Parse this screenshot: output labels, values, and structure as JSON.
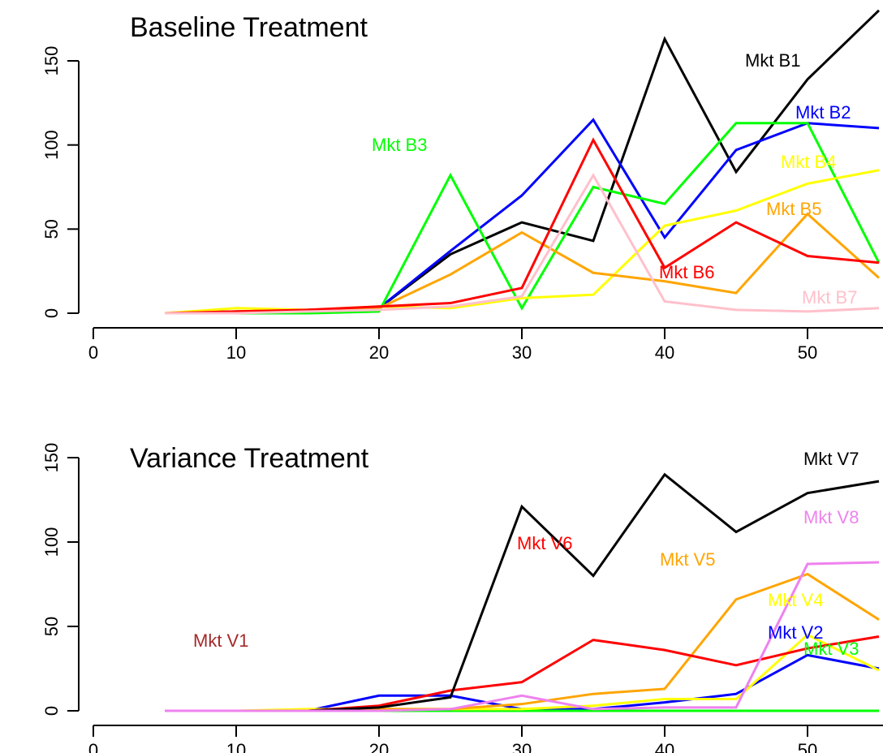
{
  "chart_data": [
    {
      "type": "line",
      "title": "Baseline Treatment",
      "xlabel": "",
      "ylabel": "",
      "xlim": [
        0,
        55
      ],
      "ylim": [
        0,
        170
      ],
      "x_ticks": [
        0,
        10,
        20,
        30,
        40,
        50
      ],
      "y_ticks": [
        0,
        50,
        100,
        150
      ],
      "grid": false,
      "x": [
        5,
        10,
        15,
        20,
        25,
        30,
        35,
        40,
        45,
        50,
        55
      ],
      "series": [
        {
          "name": "Mkt B1",
          "color": "#000000",
          "values": [
            0,
            1,
            2,
            3,
            35,
            54,
            43,
            163,
            84,
            139,
            180
          ]
        },
        {
          "name": "Mkt B2",
          "color": "#0000FF",
          "values": [
            0,
            0,
            1,
            3,
            37,
            70,
            115,
            45,
            97,
            113,
            110
          ]
        },
        {
          "name": "Mkt B3",
          "color": "#00FF00",
          "values": [
            0,
            0,
            0,
            1,
            82,
            3,
            75,
            65,
            113,
            113,
            30
          ]
        },
        {
          "name": "Mkt B4",
          "color": "#FFFF00",
          "values": [
            0,
            3,
            2,
            4,
            3,
            9,
            11,
            52,
            61,
            77,
            85
          ]
        },
        {
          "name": "Mkt B5",
          "color": "#FFA500",
          "values": [
            0,
            1,
            2,
            3,
            23,
            48,
            24,
            19,
            12,
            59,
            21
          ]
        },
        {
          "name": "Mkt B6",
          "color": "#FF0000",
          "values": [
            0,
            1,
            2,
            4,
            6,
            15,
            103,
            27,
            54,
            34,
            30
          ]
        },
        {
          "name": "Mkt B7",
          "color": "#FFC0CB",
          "values": [
            0,
            0,
            1,
            2,
            4,
            10,
            82,
            7,
            2,
            1,
            3
          ]
        }
      ]
    },
    {
      "type": "line",
      "title": "Variance Treatment",
      "xlabel": "",
      "ylabel": "",
      "xlim": [
        0,
        55
      ],
      "ylim": [
        0,
        155
      ],
      "x_ticks": [
        0,
        10,
        20,
        30,
        40,
        50
      ],
      "y_ticks": [
        0,
        50,
        100,
        150
      ],
      "grid": false,
      "x": [
        5,
        10,
        15,
        20,
        25,
        30,
        35,
        40,
        45,
        50,
        55
      ],
      "series": [
        {
          "name": "Mkt V1",
          "color": "#A52A2A",
          "values": [
            0,
            0,
            0,
            0,
            0,
            0,
            0,
            0,
            0,
            0,
            0
          ]
        },
        {
          "name": "Mkt V2",
          "color": "#0000FF",
          "values": [
            0,
            0,
            0,
            9,
            9,
            1,
            1,
            5,
            10,
            33,
            25
          ]
        },
        {
          "name": "Mkt V3",
          "color": "#00FF00",
          "values": [
            0,
            0,
            0,
            0,
            0,
            0,
            0,
            0,
            0,
            0,
            0
          ]
        },
        {
          "name": "Mkt V4",
          "color": "#FFFF00",
          "values": [
            0,
            0,
            1,
            1,
            1,
            1,
            3,
            7,
            7,
            45,
            24
          ]
        },
        {
          "name": "Mkt V5",
          "color": "#FFA500",
          "values": [
            0,
            0,
            0,
            1,
            1,
            4,
            10,
            13,
            66,
            81,
            54
          ]
        },
        {
          "name": "Mkt V6",
          "color": "#FF0000",
          "values": [
            0,
            0,
            0,
            3,
            12,
            17,
            42,
            36,
            27,
            37,
            44
          ]
        },
        {
          "name": "Mkt V7",
          "color": "#000000",
          "values": [
            0,
            0,
            0,
            2,
            8,
            121,
            80,
            140,
            106,
            129,
            136
          ]
        },
        {
          "name": "Mkt V8",
          "color": "#EE82EE",
          "values": [
            0,
            0,
            0,
            0,
            1,
            9,
            1,
            2,
            2,
            87,
            88
          ]
        }
      ]
    }
  ]
}
